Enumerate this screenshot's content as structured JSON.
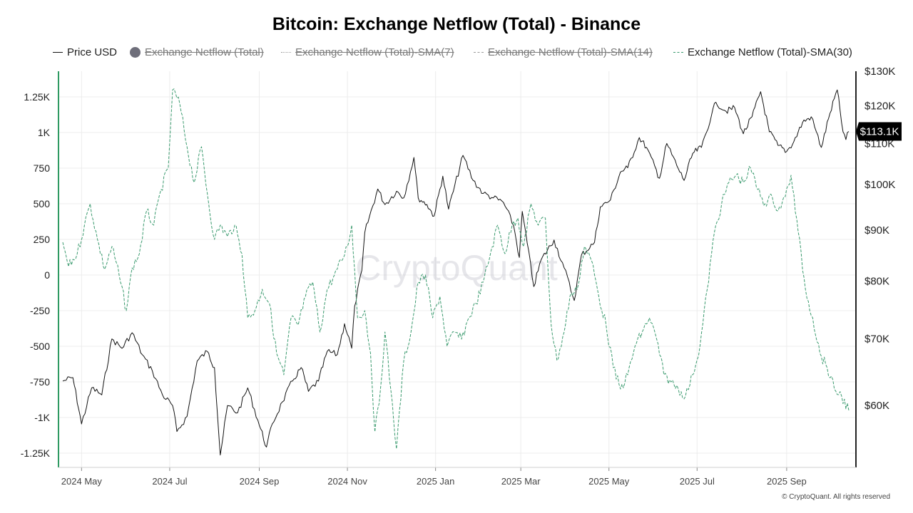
{
  "title": "Bitcoin: Exchange Netflow (Total) - Binance",
  "legend": [
    {
      "label": "Price USD",
      "style": "solid",
      "color": "#111111",
      "enabled": true
    },
    {
      "label": "Exchange Netflow (Total)",
      "style": "dot",
      "color": "#6e6e7a",
      "enabled": false
    },
    {
      "label": "Exchange Netflow (Total)-SMA(7)",
      "style": "dotted",
      "color": "#999999",
      "enabled": false
    },
    {
      "label": "Exchange Netflow (Total)-SMA(14)",
      "style": "dashed",
      "color": "#999999",
      "enabled": false
    },
    {
      "label": "Exchange Netflow (Total)-SMA(30)",
      "style": "dashed",
      "color": "#3a9a6e",
      "enabled": true
    }
  ],
  "watermark": "CryptoQuant",
  "copyright": "© CryptoQuant. All rights reserved",
  "colors": {
    "price": "#111111",
    "netflow_sma30": "#3a9a6e",
    "left_axis": "#2e9a62",
    "right_axis": "#222222",
    "grid": "#ececec"
  },
  "chart_data": {
    "type": "line",
    "x_start": "2024-04-18",
    "x_end": "2025-10-14",
    "x_ticks": [
      {
        "label": "2024 May",
        "date": "2024-05-01"
      },
      {
        "label": "2024 Jul",
        "date": "2024-07-01"
      },
      {
        "label": "2024 Sep",
        "date": "2024-09-01"
      },
      {
        "label": "2024 Nov",
        "date": "2024-11-01"
      },
      {
        "label": "2025 Jan",
        "date": "2025-01-01"
      },
      {
        "label": "2025 Mar",
        "date": "2025-03-01"
      },
      {
        "label": "2025 May",
        "date": "2025-05-01"
      },
      {
        "label": "2025 Jul",
        "date": "2025-07-01"
      },
      {
        "label": "2025 Sep",
        "date": "2025-09-01"
      }
    ],
    "y_left": {
      "ticks": [
        1250,
        1000,
        750,
        500,
        250,
        0,
        -250,
        -500,
        -750,
        -1000,
        -1250
      ],
      "tick_labels": [
        "1.25K",
        "1K",
        "750",
        "500",
        "250",
        "0",
        "-250",
        "-500",
        "-750",
        "-1K",
        "-1.25K"
      ],
      "range": [
        -1350,
        1430
      ]
    },
    "y_right": {
      "scale": "log",
      "tick_values": [
        130000,
        120000,
        110000,
        100000,
        90000,
        80000,
        70000,
        60000
      ],
      "tick_labels": [
        "$130K",
        "$120K",
        "$110K",
        "$100K",
        "$90K",
        "$80K",
        "$70K",
        "$60K"
      ],
      "range": [
        52000,
        130000
      ],
      "last_value": 113100,
      "last_value_label": "$113.1K"
    },
    "grid": true,
    "series": [
      {
        "name": "Price USD",
        "axis": "right",
        "style": "solid",
        "points": [
          [
            "2024-04-18",
            63500
          ],
          [
            "2024-04-25",
            64000
          ],
          [
            "2024-05-01",
            57500
          ],
          [
            "2024-05-08",
            62500
          ],
          [
            "2024-05-15",
            61500
          ],
          [
            "2024-05-22",
            70000
          ],
          [
            "2024-05-29",
            68500
          ],
          [
            "2024-06-05",
            71000
          ],
          [
            "2024-06-12",
            67500
          ],
          [
            "2024-06-19",
            65000
          ],
          [
            "2024-06-26",
            61500
          ],
          [
            "2024-07-03",
            60000
          ],
          [
            "2024-07-06",
            56500
          ],
          [
            "2024-07-13",
            58500
          ],
          [
            "2024-07-20",
            66500
          ],
          [
            "2024-07-27",
            68000
          ],
          [
            "2024-08-01",
            65500
          ],
          [
            "2024-08-05",
            53500
          ],
          [
            "2024-08-10",
            60000
          ],
          [
            "2024-08-17",
            59000
          ],
          [
            "2024-08-24",
            62500
          ],
          [
            "2024-08-31",
            58000
          ],
          [
            "2024-09-06",
            54500
          ],
          [
            "2024-09-10",
            57500
          ],
          [
            "2024-09-17",
            60500
          ],
          [
            "2024-09-24",
            63500
          ],
          [
            "2024-09-30",
            65500
          ],
          [
            "2024-10-05",
            62000
          ],
          [
            "2024-10-12",
            63500
          ],
          [
            "2024-10-18",
            68000
          ],
          [
            "2024-10-25",
            67500
          ],
          [
            "2024-10-30",
            72500
          ],
          [
            "2024-11-04",
            68500
          ],
          [
            "2024-11-06",
            75500
          ],
          [
            "2024-11-11",
            82000
          ],
          [
            "2024-11-13",
            89500
          ],
          [
            "2024-11-22",
            99000
          ],
          [
            "2024-11-27",
            95500
          ],
          [
            "2024-12-05",
            98500
          ],
          [
            "2024-12-10",
            97000
          ],
          [
            "2024-12-17",
            106500
          ],
          [
            "2024-12-20",
            97000
          ],
          [
            "2024-12-26",
            95500
          ],
          [
            "2024-12-31",
            93000
          ],
          [
            "2025-01-06",
            102000
          ],
          [
            "2025-01-10",
            94500
          ],
          [
            "2025-01-20",
            107000
          ],
          [
            "2025-01-27",
            101000
          ],
          [
            "2025-02-03",
            98000
          ],
          [
            "2025-02-10",
            97000
          ],
          [
            "2025-02-17",
            96000
          ],
          [
            "2025-02-24",
            91000
          ],
          [
            "2025-02-28",
            84500
          ],
          [
            "2025-03-02",
            94000
          ],
          [
            "2025-03-10",
            79000
          ],
          [
            "2025-03-15",
            84000
          ],
          [
            "2025-03-24",
            88000
          ],
          [
            "2025-03-31",
            82500
          ],
          [
            "2025-04-07",
            76500
          ],
          [
            "2025-04-12",
            85000
          ],
          [
            "2025-04-21",
            87500
          ],
          [
            "2025-04-25",
            95000
          ],
          [
            "2025-05-02",
            96500
          ],
          [
            "2025-05-09",
            103000
          ],
          [
            "2025-05-14",
            104000
          ],
          [
            "2025-05-22",
            111500
          ],
          [
            "2025-05-27",
            109000
          ],
          [
            "2025-06-05",
            101500
          ],
          [
            "2025-06-10",
            110000
          ],
          [
            "2025-06-17",
            104500
          ],
          [
            "2025-06-22",
            101000
          ],
          [
            "2025-06-28",
            107500
          ],
          [
            "2025-07-04",
            109000
          ],
          [
            "2025-07-11",
            117500
          ],
          [
            "2025-07-14",
            121000
          ],
          [
            "2025-07-21",
            118500
          ],
          [
            "2025-07-27",
            119500
          ],
          [
            "2025-08-02",
            112500
          ],
          [
            "2025-08-08",
            117000
          ],
          [
            "2025-08-14",
            124000
          ],
          [
            "2025-08-20",
            113000
          ],
          [
            "2025-08-26",
            109500
          ],
          [
            "2025-09-01",
            108000
          ],
          [
            "2025-09-06",
            110500
          ],
          [
            "2025-09-12",
            115500
          ],
          [
            "2025-09-18",
            117000
          ],
          [
            "2025-09-25",
            109000
          ],
          [
            "2025-10-01",
            118000
          ],
          [
            "2025-10-06",
            124500
          ],
          [
            "2025-10-10",
            113000
          ],
          [
            "2025-10-12",
            111000
          ],
          [
            "2025-10-14",
            113100
          ]
        ]
      },
      {
        "name": "Exchange Netflow (Total)-SMA(30)",
        "axis": "left",
        "style": "dashed",
        "points": [
          [
            "2024-04-18",
            230
          ],
          [
            "2024-04-22",
            60
          ],
          [
            "2024-04-28",
            150
          ],
          [
            "2024-05-03",
            350
          ],
          [
            "2024-05-07",
            500
          ],
          [
            "2024-05-12",
            250
          ],
          [
            "2024-05-17",
            40
          ],
          [
            "2024-05-22",
            200
          ],
          [
            "2024-05-27",
            0
          ],
          [
            "2024-06-01",
            -250
          ],
          [
            "2024-06-05",
            50
          ],
          [
            "2024-06-10",
            150
          ],
          [
            "2024-06-15",
            450
          ],
          [
            "2024-06-20",
            350
          ],
          [
            "2024-06-25",
            600
          ],
          [
            "2024-06-30",
            750
          ],
          [
            "2024-07-03",
            1300
          ],
          [
            "2024-07-08",
            1200
          ],
          [
            "2024-07-13",
            900
          ],
          [
            "2024-07-18",
            650
          ],
          [
            "2024-07-23",
            900
          ],
          [
            "2024-07-28",
            500
          ],
          [
            "2024-08-01",
            250
          ],
          [
            "2024-08-05",
            350
          ],
          [
            "2024-08-10",
            270
          ],
          [
            "2024-08-15",
            350
          ],
          [
            "2024-08-20",
            150
          ],
          [
            "2024-08-24",
            -300
          ],
          [
            "2024-08-29",
            -250
          ],
          [
            "2024-09-03",
            -100
          ],
          [
            "2024-09-08",
            -200
          ],
          [
            "2024-09-13",
            -550
          ],
          [
            "2024-09-18",
            -700
          ],
          [
            "2024-09-23",
            -300
          ],
          [
            "2024-09-28",
            -350
          ],
          [
            "2024-10-03",
            -150
          ],
          [
            "2024-10-08",
            -50
          ],
          [
            "2024-10-13",
            -400
          ],
          [
            "2024-10-18",
            -100
          ],
          [
            "2024-10-23",
            0
          ],
          [
            "2024-10-28",
            100
          ],
          [
            "2024-11-01",
            200
          ],
          [
            "2024-11-04",
            350
          ],
          [
            "2024-11-08",
            -300
          ],
          [
            "2024-11-13",
            -250
          ],
          [
            "2024-11-17",
            -550
          ],
          [
            "2024-11-20",
            -1100
          ],
          [
            "2024-11-23",
            -900
          ],
          [
            "2024-11-27",
            -400
          ],
          [
            "2024-12-01",
            -800
          ],
          [
            "2024-12-05",
            -1220
          ],
          [
            "2024-12-10",
            -600
          ],
          [
            "2024-12-15",
            -400
          ],
          [
            "2024-12-20",
            -50
          ],
          [
            "2024-12-25",
            0
          ],
          [
            "2024-12-30",
            -300
          ],
          [
            "2025-01-04",
            -150
          ],
          [
            "2025-01-09",
            -500
          ],
          [
            "2025-01-14",
            -400
          ],
          [
            "2025-01-19",
            -450
          ],
          [
            "2025-01-24",
            -300
          ],
          [
            "2025-01-29",
            -200
          ],
          [
            "2025-02-03",
            -50
          ],
          [
            "2025-02-08",
            150
          ],
          [
            "2025-02-13",
            350
          ],
          [
            "2025-02-18",
            150
          ],
          [
            "2025-02-23",
            350
          ],
          [
            "2025-02-27",
            400
          ],
          [
            "2025-03-03",
            200
          ],
          [
            "2025-03-08",
            500
          ],
          [
            "2025-03-13",
            350
          ],
          [
            "2025-03-18",
            400
          ],
          [
            "2025-03-22",
            -350
          ],
          [
            "2025-03-26",
            -600
          ],
          [
            "2025-03-31",
            -400
          ],
          [
            "2025-04-04",
            -150
          ],
          [
            "2025-04-09",
            -100
          ],
          [
            "2025-04-14",
            200
          ],
          [
            "2025-04-19",
            100
          ],
          [
            "2025-04-24",
            -150
          ],
          [
            "2025-04-29",
            -350
          ],
          [
            "2025-05-04",
            -650
          ],
          [
            "2025-05-09",
            -800
          ],
          [
            "2025-05-14",
            -700
          ],
          [
            "2025-05-19",
            -500
          ],
          [
            "2025-05-24",
            -400
          ],
          [
            "2025-05-29",
            -300
          ],
          [
            "2025-06-03",
            -450
          ],
          [
            "2025-06-08",
            -700
          ],
          [
            "2025-06-13",
            -750
          ],
          [
            "2025-06-18",
            -800
          ],
          [
            "2025-06-23",
            -850
          ],
          [
            "2025-06-28",
            -700
          ],
          [
            "2025-07-03",
            -500
          ],
          [
            "2025-07-08",
            -100
          ],
          [
            "2025-07-13",
            300
          ],
          [
            "2025-07-18",
            500
          ],
          [
            "2025-07-23",
            650
          ],
          [
            "2025-07-28",
            700
          ],
          [
            "2025-08-02",
            650
          ],
          [
            "2025-08-07",
            750
          ],
          [
            "2025-08-12",
            600
          ],
          [
            "2025-08-17",
            500
          ],
          [
            "2025-08-22",
            550
          ],
          [
            "2025-08-26",
            450
          ],
          [
            "2025-08-31",
            550
          ],
          [
            "2025-09-04",
            700
          ],
          [
            "2025-09-09",
            300
          ],
          [
            "2025-09-14",
            -100
          ],
          [
            "2025-09-19",
            -300
          ],
          [
            "2025-09-24",
            -550
          ],
          [
            "2025-09-29",
            -650
          ],
          [
            "2025-10-04",
            -800
          ],
          [
            "2025-10-09",
            -850
          ],
          [
            "2025-10-14",
            -950
          ]
        ]
      }
    ]
  }
}
